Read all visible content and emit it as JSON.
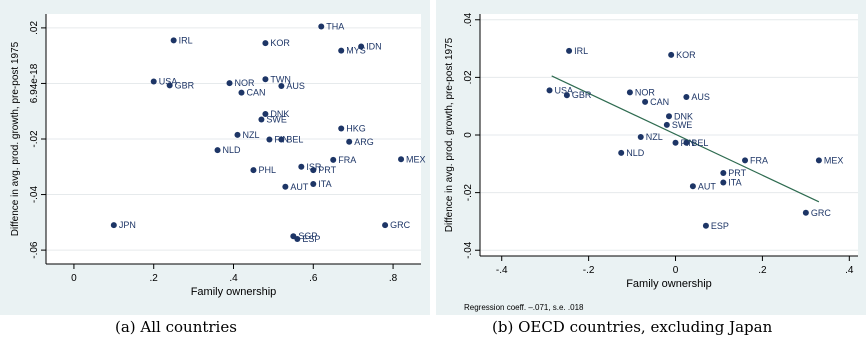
{
  "chart_data": [
    {
      "type": "scatter",
      "caption": "(a) All countries",
      "xlabel": "Family ownership",
      "ylabel": "Diffence in avg. prod. growth, pre-post 1975",
      "xlim": [
        -0.07,
        0.87
      ],
      "ylim": [
        -0.065,
        0.025
      ],
      "xticks": [
        "0",
        ".2",
        ".4",
        ".6",
        ".8"
      ],
      "xtick_values": [
        0,
        0.2,
        0.4,
        0.6,
        0.8
      ],
      "yticks": [
        ".02",
        "6.94e-18",
        "-.02",
        "-.04",
        "-.06"
      ],
      "ytick_values": [
        0.02,
        0.0,
        -0.02,
        -0.04,
        -0.06
      ],
      "grid": true,
      "points": [
        {
          "label": "IRL",
          "x": 0.25,
          "y": 0.0155
        },
        {
          "label": "KOR",
          "x": 0.48,
          "y": 0.0145
        },
        {
          "label": "THA",
          "x": 0.62,
          "y": 0.0205
        },
        {
          "label": "MYS",
          "x": 0.67,
          "y": 0.0118
        },
        {
          "label": "IDN",
          "x": 0.72,
          "y": 0.0133
        },
        {
          "label": "USA",
          "x": 0.2,
          "y": 0.0007
        },
        {
          "label": "GBR",
          "x": 0.24,
          "y": -0.0007
        },
        {
          "label": "NOR",
          "x": 0.39,
          "y": 0.0001
        },
        {
          "label": "TWN",
          "x": 0.48,
          "y": 0.0015
        },
        {
          "label": "AUS",
          "x": 0.52,
          "y": -0.0009
        },
        {
          "label": "CAN",
          "x": 0.42,
          "y": -0.0033
        },
        {
          "label": "DNK",
          "x": 0.48,
          "y": -0.011
        },
        {
          "label": "SWE",
          "x": 0.47,
          "y": -0.013
        },
        {
          "label": "HKG",
          "x": 0.67,
          "y": -0.0162
        },
        {
          "label": "NZL",
          "x": 0.41,
          "y": -0.0185
        },
        {
          "label": "FIN",
          "x": 0.49,
          "y": -0.0202
        },
        {
          "label": "BEL",
          "x": 0.52,
          "y": -0.0202
        },
        {
          "label": "ARG",
          "x": 0.69,
          "y": -0.021
        },
        {
          "label": "NLD",
          "x": 0.36,
          "y": -0.024
        },
        {
          "label": "MEX",
          "x": 0.82,
          "y": -0.0273
        },
        {
          "label": "FRA",
          "x": 0.65,
          "y": -0.0275
        },
        {
          "label": "PHL",
          "x": 0.45,
          "y": -0.0312
        },
        {
          "label": "ISR",
          "x": 0.57,
          "y": -0.03
        },
        {
          "label": "PRT",
          "x": 0.6,
          "y": -0.0312
        },
        {
          "label": "ITA",
          "x": 0.6,
          "y": -0.0362
        },
        {
          "label": "AUT",
          "x": 0.53,
          "y": -0.0372
        },
        {
          "label": "JPN",
          "x": 0.1,
          "y": -0.051
        },
        {
          "label": "GRC",
          "x": 0.78,
          "y": -0.051
        },
        {
          "label": "SGP",
          "x": 0.55,
          "y": -0.055
        },
        {
          "label": "ESP",
          "x": 0.56,
          "y": -0.056
        }
      ]
    },
    {
      "type": "scatter",
      "caption": "(b) OECD countries, excluding Japan",
      "xlabel": "Family ownership",
      "ylabel": "Diffence in avg. prod. growth, pre-post 1975",
      "xlim": [
        -0.45,
        0.42
      ],
      "ylim": [
        -0.042,
        0.042
      ],
      "xticks": [
        "-.4",
        "-.2",
        "0",
        ".2",
        ".4"
      ],
      "xtick_values": [
        -0.4,
        -0.2,
        0,
        0.2,
        0.4
      ],
      "yticks": [
        ".04",
        ".02",
        "0",
        "-.02",
        "-.04"
      ],
      "ytick_values": [
        0.04,
        0.02,
        0.0,
        -0.02,
        -0.04
      ],
      "grid": true,
      "note": "Regression coeff. –.071, s.e.  .018",
      "fit_line": {
        "x": [
          -0.285,
          0.33
        ],
        "y": [
          0.0205,
          -0.0232
        ]
      },
      "points": [
        {
          "label": "IRL",
          "x": -0.245,
          "y": 0.0292
        },
        {
          "label": "KOR",
          "x": -0.01,
          "y": 0.0278
        },
        {
          "label": "USA",
          "x": -0.29,
          "y": 0.0155
        },
        {
          "label": "GBR",
          "x": -0.25,
          "y": 0.0138
        },
        {
          "label": "NOR",
          "x": -0.105,
          "y": 0.0148
        },
        {
          "label": "CAN",
          "x": -0.07,
          "y": 0.0115
        },
        {
          "label": "AUS",
          "x": 0.025,
          "y": 0.0132
        },
        {
          "label": "DNK",
          "x": -0.015,
          "y": 0.0065
        },
        {
          "label": "SWE",
          "x": -0.02,
          "y": 0.0035
        },
        {
          "label": "NZL",
          "x": -0.08,
          "y": -0.0007
        },
        {
          "label": "FIN",
          "x": 0.0,
          "y": -0.0027
        },
        {
          "label": "BEL",
          "x": 0.025,
          "y": -0.0027
        },
        {
          "label": "NLD",
          "x": -0.125,
          "y": -0.0062
        },
        {
          "label": "FRA",
          "x": 0.16,
          "y": -0.0088
        },
        {
          "label": "MEX",
          "x": 0.33,
          "y": -0.0088
        },
        {
          "label": "PRT",
          "x": 0.11,
          "y": -0.0132
        },
        {
          "label": "ITA",
          "x": 0.11,
          "y": -0.0165
        },
        {
          "label": "AUT",
          "x": 0.04,
          "y": -0.0178
        },
        {
          "label": "GRC",
          "x": 0.3,
          "y": -0.027
        },
        {
          "label": "ESP",
          "x": 0.07,
          "y": -0.0315
        }
      ]
    }
  ]
}
